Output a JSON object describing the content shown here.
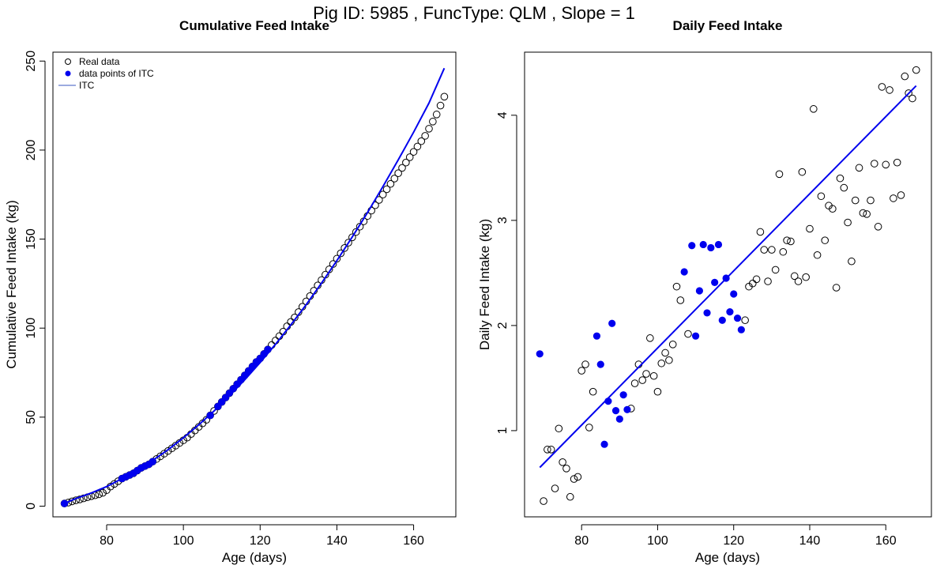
{
  "figure": {
    "title": "Pig ID: 5985 , FuncType: QLM , Slope = 1"
  },
  "chart_data": [
    {
      "type": "scatter",
      "title": "Cumulative Feed Intake",
      "xlabel": "Age (days)",
      "ylabel": "Cumulative Feed Intake (kg)",
      "xlim": [
        66,
        171
      ],
      "ylim": [
        -6,
        255
      ],
      "xticks": [
        80,
        100,
        120,
        140,
        160
      ],
      "yticks": [
        0,
        50,
        100,
        150,
        200,
        250
      ],
      "grid": false,
      "legend": {
        "placement": "top-left",
        "entries": [
          "Real data",
          "data points of ITC",
          "ITC"
        ]
      },
      "colors": {
        "real": "#000000",
        "itc_points": "#0000ee",
        "itc_line": "#0000ee"
      },
      "series": [
        {
          "name": "Real data",
          "style": "open-circle",
          "x": [
            69,
            70,
            71,
            72,
            73,
            74,
            75,
            76,
            77,
            78,
            79,
            80,
            81,
            82,
            83,
            84,
            85,
            86,
            87,
            88,
            89,
            90,
            91,
            92,
            93,
            94,
            95,
            96,
            97,
            98,
            99,
            100,
            101,
            102,
            103,
            104,
            105,
            106,
            107,
            108,
            109,
            110,
            111,
            112,
            113,
            114,
            115,
            116,
            117,
            118,
            119,
            120,
            121,
            122,
            123,
            124,
            125,
            126,
            127,
            128,
            129,
            130,
            131,
            132,
            133,
            134,
            135,
            136,
            137,
            138,
            139,
            140,
            141,
            142,
            143,
            144,
            145,
            146,
            147,
            148,
            149,
            150,
            151,
            152,
            153,
            154,
            155,
            156,
            157,
            158,
            159,
            160,
            161,
            162,
            163,
            164,
            165,
            166,
            167,
            168
          ],
          "y": [
            1.5,
            2.0,
            2.7,
            3.3,
            3.8,
            4.4,
            5.0,
            5.6,
            6.1,
            6.7,
            7.5,
            9.0,
            11.0,
            12.5,
            14.0,
            15.5,
            16.5,
            17.5,
            18.5,
            20.0,
            21.5,
            22.5,
            23.5,
            25.0,
            26.5,
            28.0,
            29.5,
            31.0,
            32.5,
            34.0,
            35.5,
            37.0,
            38.5,
            40.5,
            42.5,
            44.5,
            46.5,
            48.5,
            51.0,
            53.5,
            56.0,
            58.5,
            61.0,
            63.5,
            66.0,
            68.5,
            71.0,
            73.5,
            76.0,
            78.5,
            81.0,
            83.0,
            85.5,
            88.0,
            90.5,
            93.0,
            95.5,
            98.0,
            101.0,
            103.5,
            106.0,
            109.0,
            112.0,
            115.0,
            118.0,
            121.0,
            124.0,
            127.0,
            130.0,
            133.0,
            136.0,
            139.0,
            142.0,
            145.0,
            148.0,
            151.0,
            154.0,
            157.0,
            160.0,
            163.0,
            166.0,
            169.0,
            172.0,
            175.0,
            178.0,
            181.0,
            184.0,
            187.0,
            190.0,
            193.0,
            196.0,
            199.0,
            202.0,
            205.0,
            208.0,
            212.0,
            216.0,
            220.0,
            225.0,
            230.0
          ]
        },
        {
          "name": "data points of ITC",
          "style": "filled-circle",
          "x": [
            69,
            84,
            85,
            86,
            87,
            88,
            89,
            90,
            91,
            92,
            107,
            109,
            110,
            111,
            112,
            113,
            114,
            115,
            116,
            117,
            118,
            119,
            120,
            121,
            122
          ],
          "y": [
            1.5,
            15.5,
            16.5,
            17.5,
            18.5,
            20.0,
            21.5,
            22.5,
            23.5,
            25.0,
            51.0,
            56.0,
            58.5,
            61.0,
            63.5,
            66.0,
            68.5,
            71.0,
            73.5,
            76.0,
            78.5,
            81.0,
            83.0,
            85.5,
            88.0
          ]
        },
        {
          "name": "ITC",
          "style": "line",
          "x": [
            69,
            72,
            76,
            80,
            84,
            88,
            92,
            96,
            100,
            104,
            108,
            112,
            116,
            120,
            124,
            128,
            132,
            136,
            140,
            144,
            148,
            152,
            156,
            160,
            164,
            168
          ],
          "y": [
            1.5,
            4.3,
            7.4,
            11.0,
            15.5,
            20.3,
            25.7,
            31.7,
            38.4,
            45.7,
            53.5,
            62.0,
            71.0,
            80.7,
            90.9,
            101.8,
            113.2,
            125.3,
            137.9,
            151.2,
            165.0,
            179.5,
            194.5,
            210.1,
            226.4,
            246.0
          ]
        }
      ]
    },
    {
      "type": "scatter",
      "title": "Daily Feed Intake",
      "xlabel": "Age (days)",
      "ylabel": "Daily Feed Intake (kg)",
      "xlim": [
        65,
        172
      ],
      "ylim": [
        0.18,
        4.6
      ],
      "xticks": [
        80,
        100,
        120,
        140,
        160
      ],
      "yticks": [
        1,
        2,
        3,
        4
      ],
      "grid": false,
      "colors": {
        "real": "#000000",
        "itc_points": "#0000ee",
        "itc_line": "#0000ee"
      },
      "series": [
        {
          "name": "Real data",
          "style": "open-circle",
          "x": [
            70,
            71,
            72,
            73,
            74,
            75,
            76,
            77,
            78,
            79,
            80,
            81,
            82,
            83,
            93,
            94,
            95,
            96,
            97,
            98,
            99,
            100,
            101,
            102,
            103,
            104,
            105,
            106,
            108,
            123,
            124,
            125,
            126,
            127,
            128,
            129,
            130,
            131,
            132,
            133,
            134,
            135,
            136,
            137,
            138,
            139,
            140,
            141,
            142,
            143,
            144,
            145,
            146,
            147,
            148,
            149,
            150,
            151,
            152,
            153,
            154,
            155,
            156,
            157,
            158,
            159,
            160,
            161,
            162,
            163,
            164,
            165,
            166,
            167,
            168
          ],
          "y": [
            0.33,
            0.82,
            0.82,
            0.45,
            1.02,
            0.7,
            0.64,
            0.37,
            0.54,
            0.56,
            1.57,
            1.63,
            1.03,
            1.37,
            1.21,
            1.45,
            1.63,
            1.48,
            1.54,
            1.88,
            1.52,
            1.37,
            1.64,
            1.74,
            1.67,
            1.82,
            2.37,
            2.24,
            1.92,
            2.05,
            2.37,
            2.4,
            2.44,
            2.89,
            2.72,
            2.42,
            2.72,
            2.53,
            3.44,
            2.7,
            2.81,
            2.8,
            2.47,
            2.42,
            3.46,
            2.46,
            2.92,
            4.06,
            2.67,
            3.23,
            2.81,
            3.14,
            3.11,
            2.36,
            3.4,
            3.31,
            2.98,
            2.61,
            3.19,
            3.5,
            3.07,
            3.06,
            3.19,
            3.54,
            2.94,
            4.27,
            3.53,
            4.24,
            3.21,
            3.55,
            3.24,
            4.37,
            4.21,
            4.16,
            4.43
          ]
        },
        {
          "name": "data points of ITC",
          "style": "filled-circle",
          "x": [
            69,
            84,
            85,
            86,
            87,
            88,
            89,
            90,
            91,
            92,
            107,
            109,
            110,
            111,
            112,
            113,
            114,
            115,
            116,
            117,
            118,
            119,
            120,
            121,
            122
          ],
          "y": [
            1.73,
            1.9,
            1.63,
            0.87,
            1.28,
            2.02,
            1.19,
            1.11,
            1.34,
            1.2,
            2.51,
            2.76,
            1.9,
            2.33,
            2.77,
            2.12,
            2.74,
            2.41,
            2.77,
            2.05,
            2.45,
            2.13,
            2.3,
            2.07,
            1.96
          ]
        },
        {
          "name": "ITC",
          "style": "line",
          "x": [
            69,
            168
          ],
          "y": [
            0.65,
            4.28
          ]
        }
      ]
    }
  ]
}
